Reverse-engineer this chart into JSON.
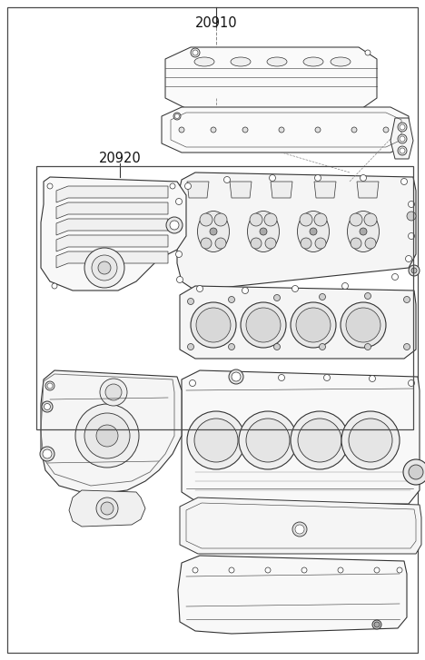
{
  "label_20910": "20910",
  "label_20920": "20920",
  "bg_color": "#ffffff",
  "border_color": "#4a4a4a",
  "line_color": "#333333",
  "text_color": "#111111",
  "fig_width": 4.68,
  "fig_height": 7.27,
  "dpi": 100
}
